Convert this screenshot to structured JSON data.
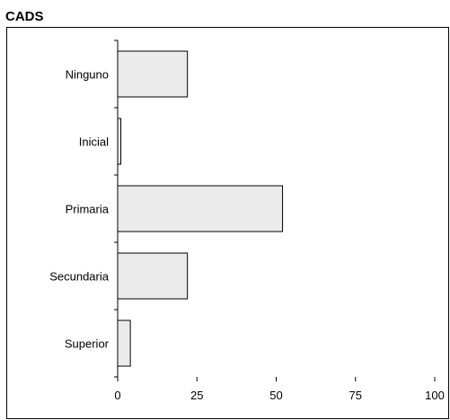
{
  "chart_data": {
    "type": "bar",
    "orientation": "horizontal",
    "title": "CADS",
    "categories": [
      "Ninguno",
      "Inicial",
      "Primaria",
      "Secundaria",
      "Superior"
    ],
    "values": [
      22,
      1,
      52,
      22,
      4
    ],
    "xlim": [
      0,
      100
    ],
    "xticks": [
      0,
      25,
      50,
      75,
      100
    ],
    "xlabel": "",
    "ylabel": "",
    "grid": false,
    "bar_color": "#ebebeb",
    "bar_edge_color": "#000000"
  }
}
